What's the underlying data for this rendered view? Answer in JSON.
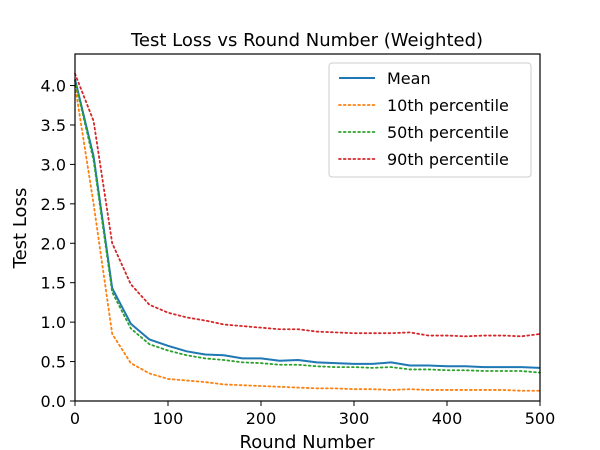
{
  "chart_data": {
    "type": "line",
    "title": "Test Loss vs Round Number (Weighted)",
    "xlabel": "Round Number",
    "ylabel": "Test Loss",
    "xlim": [
      0,
      500
    ],
    "ylim": [
      0,
      4.4
    ],
    "xticks": [
      0,
      100,
      200,
      300,
      400,
      500
    ],
    "yticks": [
      0.0,
      0.5,
      1.0,
      1.5,
      2.0,
      2.5,
      3.0,
      3.5,
      4.0
    ],
    "grid": false,
    "legend_position": "top-right",
    "x": [
      0,
      20,
      40,
      60,
      80,
      100,
      120,
      140,
      160,
      180,
      200,
      220,
      240,
      260,
      280,
      300,
      320,
      340,
      360,
      380,
      400,
      420,
      440,
      460,
      480,
      500
    ],
    "series": [
      {
        "name": "Mean",
        "color": "#1f77b4",
        "style": "solid",
        "values": [
          4.08,
          3.1,
          1.43,
          0.98,
          0.78,
          0.7,
          0.63,
          0.59,
          0.58,
          0.54,
          0.54,
          0.51,
          0.52,
          0.49,
          0.48,
          0.47,
          0.47,
          0.49,
          0.45,
          0.45,
          0.44,
          0.44,
          0.43,
          0.43,
          0.43,
          0.42
        ]
      },
      {
        "name": "10th percentile",
        "color": "#ff7f0e",
        "style": "dotted",
        "values": [
          4.0,
          2.5,
          0.85,
          0.48,
          0.35,
          0.28,
          0.26,
          0.24,
          0.21,
          0.2,
          0.19,
          0.18,
          0.17,
          0.16,
          0.16,
          0.15,
          0.15,
          0.14,
          0.15,
          0.14,
          0.14,
          0.14,
          0.14,
          0.14,
          0.13,
          0.13
        ]
      },
      {
        "name": "50th percentile",
        "color": "#2ca02c",
        "style": "dotted",
        "values": [
          4.06,
          3.05,
          1.38,
          0.92,
          0.72,
          0.64,
          0.58,
          0.54,
          0.52,
          0.49,
          0.48,
          0.46,
          0.46,
          0.44,
          0.43,
          0.43,
          0.42,
          0.43,
          0.4,
          0.4,
          0.39,
          0.39,
          0.38,
          0.38,
          0.38,
          0.36
        ]
      },
      {
        "name": "90th percentile",
        "color": "#d62728",
        "style": "dotted",
        "values": [
          4.15,
          3.55,
          2.0,
          1.48,
          1.22,
          1.12,
          1.06,
          1.02,
          0.97,
          0.95,
          0.93,
          0.91,
          0.91,
          0.88,
          0.87,
          0.86,
          0.86,
          0.86,
          0.87,
          0.83,
          0.83,
          0.82,
          0.83,
          0.83,
          0.82,
          0.85
        ]
      }
    ]
  }
}
